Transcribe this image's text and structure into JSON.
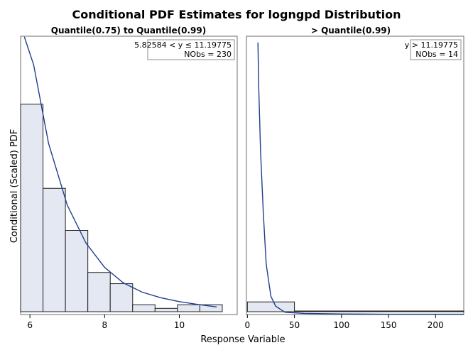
{
  "chart_data": [
    {
      "type": "bar",
      "panel": "left",
      "figure_title": "Conditional PDF Estimates for logngpd Distribution",
      "title": "Quantile(0.75) to Quantile(0.99)",
      "xlabel": "Response Variable",
      "ylabel": "Conditional (Scaled) PDF",
      "xlim": [
        5.75,
        11.55
      ],
      "ylim": [
        0,
        1
      ],
      "x_ticks": [
        6,
        8,
        10
      ],
      "bin_edges": [
        5.75,
        6.35,
        6.95,
        7.55,
        8.15,
        8.75,
        9.35,
        9.95,
        10.55,
        11.15
      ],
      "values": [
        0.75,
        0.45,
        0.3,
        0.15,
        0.11,
        0.035,
        0.022,
        0.035,
        0.035
      ],
      "curve": {
        "x": [
          5.85,
          6.1,
          6.5,
          7.0,
          7.5,
          8.0,
          8.5,
          9.0,
          9.5,
          10.0,
          10.5,
          11.0
        ],
        "y": [
          0.99,
          0.89,
          0.61,
          0.39,
          0.255,
          0.168,
          0.113,
          0.08,
          0.06,
          0.046,
          0.036,
          0.027
        ]
      },
      "inset": {
        "line1": "5.82584 < y ≤ 11.19775",
        "line2": "NObs = 230"
      },
      "colors": {
        "bar_fill": "#e3e8f3",
        "curve": "#1f3f8c"
      }
    },
    {
      "type": "bar",
      "panel": "right",
      "title": "> Quantile(0.99)",
      "xlabel": "Response Variable",
      "xlim": [
        -1,
        230
      ],
      "ylim": [
        0,
        1
      ],
      "x_ticks": [
        0,
        50,
        100,
        150,
        200
      ],
      "bin_edges": [
        0,
        50,
        100,
        150,
        200,
        230
      ],
      "values": [
        0.045,
        0.002,
        0.002,
        0.002,
        0.005
      ],
      "curve": {
        "x": [
          11.2,
          12,
          14,
          17,
          20,
          25,
          30,
          40,
          60,
          100,
          150,
          230
        ],
        "y": [
          0.97,
          0.82,
          0.58,
          0.36,
          0.18,
          0.065,
          0.03,
          0.008,
          0.004,
          0.002,
          0.001,
          0.001
        ]
      },
      "inset": {
        "line1": "y > 11.19775",
        "line2": "NObs = 14"
      },
      "colors": {
        "bar_fill": "#e3e8f3",
        "curve": "#1f3f8c"
      }
    }
  ]
}
